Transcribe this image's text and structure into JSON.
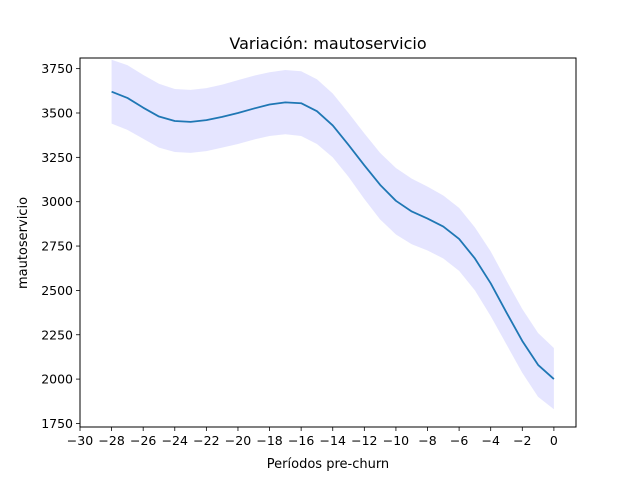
{
  "chart_data": {
    "type": "line",
    "title": "Variación: mautoservicio",
    "xlabel": "Períodos pre-churn",
    "ylabel": "mautoservicio",
    "xlim": [
      -30,
      1.4
    ],
    "ylim": [
      1730,
      3810
    ],
    "x_ticks": [
      -30,
      -28,
      -26,
      -24,
      -22,
      -20,
      -18,
      -16,
      -14,
      -12,
      -10,
      -8,
      -6,
      -4,
      -2,
      0
    ],
    "x_tick_labels": [
      "−30",
      "−28",
      "−26",
      "−24",
      "−22",
      "−20",
      "−18",
      "−16",
      "−14",
      "−12",
      "−10",
      "−8",
      "−6",
      "−4",
      "−2",
      "0"
    ],
    "y_ticks": [
      1750,
      2000,
      2250,
      2500,
      2750,
      3000,
      3250,
      3500,
      3750
    ],
    "y_tick_labels": [
      "1750",
      "2000",
      "2250",
      "2500",
      "2750",
      "3000",
      "3250",
      "3500",
      "3750"
    ],
    "grid": false,
    "legend": "none",
    "series": [
      {
        "color": "#1f77b4",
        "band_color": "#0000ff",
        "x": [
          -28,
          -27,
          -26,
          -25,
          -24,
          -23,
          -22,
          -21,
          -20,
          -19,
          -18,
          -17,
          -16,
          -15,
          -14,
          -13,
          -12,
          -11,
          -10,
          -9,
          -8,
          -7,
          -6,
          -5,
          -4,
          -3,
          -2,
          -1,
          0
        ],
        "values": [
          3620,
          3585,
          3530,
          3480,
          3455,
          3450,
          3460,
          3478,
          3500,
          3525,
          3548,
          3560,
          3555,
          3510,
          3430,
          3320,
          3205,
          3095,
          3005,
          2945,
          2905,
          2860,
          2790,
          2680,
          2540,
          2375,
          2215,
          2080,
          2000
        ],
        "lower": [
          3440,
          3405,
          3355,
          3305,
          3280,
          3275,
          3285,
          3305,
          3325,
          3350,
          3370,
          3380,
          3370,
          3325,
          3250,
          3140,
          3015,
          2900,
          2815,
          2760,
          2725,
          2680,
          2610,
          2500,
          2355,
          2195,
          2035,
          1900,
          1830
        ],
        "upper": [
          3800,
          3770,
          3715,
          3665,
          3635,
          3630,
          3640,
          3660,
          3685,
          3710,
          3730,
          3742,
          3735,
          3690,
          3610,
          3500,
          3385,
          3275,
          3190,
          3130,
          3085,
          3035,
          2965,
          2855,
          2720,
          2555,
          2395,
          2260,
          2175
        ]
      }
    ]
  }
}
